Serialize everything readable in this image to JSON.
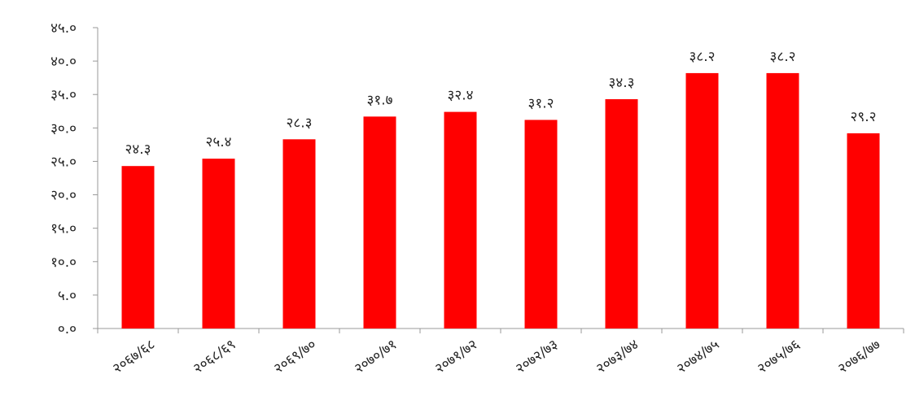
{
  "chart_data": {
    "type": "bar",
    "title": "",
    "xlabel": "",
    "ylabel": "",
    "categories": [
      "२०६७/६८",
      "२०६८/६९",
      "२०६९/७०",
      "२०७०/७१",
      "२०७१/७२",
      "२०७२/७३",
      "२०७३/७४",
      "२०७४/७५",
      "२०७५/७६",
      "२०७६/७७"
    ],
    "values": [
      24.3,
      25.4,
      28.3,
      31.7,
      32.4,
      31.2,
      34.3,
      38.2,
      38.2,
      29.2
    ],
    "data_labels": [
      "२४.३",
      "२५.४",
      "२८.३",
      "३१.७",
      "३२.४",
      "३१.२",
      "३४.३",
      "३८.२",
      "३८.२",
      "२९.२"
    ],
    "y_ticks": [
      0,
      5,
      10,
      15,
      20,
      25,
      30,
      35,
      40,
      45
    ],
    "y_tick_labels": [
      "०.०",
      "५.०",
      "१०.०",
      "१५.०",
      "२०.०",
      "२५.०",
      "३०.०",
      "३५.०",
      "४०.०",
      "४५.०"
    ],
    "ylim": [
      0,
      45
    ],
    "grid": false,
    "legend": "none",
    "bar_color": "#ff0000",
    "axis_color": "#999999"
  }
}
